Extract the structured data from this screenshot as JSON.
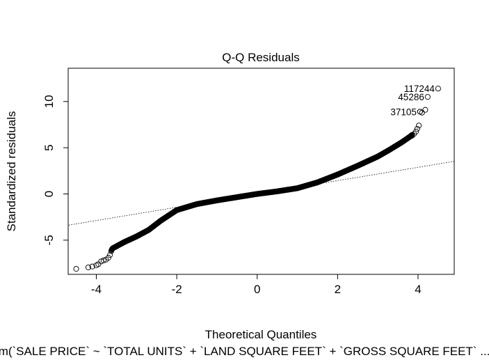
{
  "chart_data": {
    "type": "scatter",
    "title": "Q-Q Residuals",
    "xlabel": "Theoretical Quantiles",
    "ylabel": "Standardized residuals",
    "subtitle": "lm(`SALE PRICE` ~ `TOTAL UNITS` + `LAND SQUARE FEET` + `GROSS SQUARE FEET` ...)",
    "xlim": [
      -4.7,
      4.9
    ],
    "ylim": [
      -8.7,
      13.6
    ],
    "x_ticks": [
      -4,
      -2,
      0,
      2,
      4
    ],
    "y_ticks": [
      -5,
      0,
      5,
      10
    ],
    "grid": false,
    "legend": "none",
    "point_style": "open-circle",
    "reference_line": {
      "style": "dotted",
      "slope": 0.72,
      "intercept": 0.0
    },
    "labeled_points": [
      {
        "label": "117244",
        "x": 4.5,
        "y": 11.4
      },
      {
        "label": "45286",
        "x": 4.24,
        "y": 10.5
      },
      {
        "label": "37105",
        "x": 4.05,
        "y": 8.9
      }
    ],
    "curve_knots": [
      [
        -4.5,
        -8.1
      ],
      [
        -4.2,
        -7.95
      ],
      [
        -4.0,
        -7.6
      ],
      [
        -3.9,
        -7.35
      ],
      [
        -3.75,
        -7.1
      ],
      [
        -3.6,
        -5.9
      ],
      [
        -3.3,
        -5.2
      ],
      [
        -3.0,
        -4.6
      ],
      [
        -2.7,
        -3.9
      ],
      [
        -2.4,
        -2.9
      ],
      [
        -2.0,
        -1.75
      ],
      [
        -1.5,
        -1.1
      ],
      [
        -1.0,
        -0.7
      ],
      [
        -0.5,
        -0.35
      ],
      [
        0.0,
        0.0
      ],
      [
        0.5,
        0.28
      ],
      [
        1.0,
        0.62
      ],
      [
        1.5,
        1.25
      ],
      [
        2.0,
        2.1
      ],
      [
        2.5,
        3.05
      ],
      [
        3.0,
        4.05
      ],
      [
        3.3,
        4.8
      ],
      [
        3.6,
        5.6
      ],
      [
        3.8,
        6.2
      ],
      [
        3.95,
        6.75
      ],
      [
        4.0,
        7.25
      ]
    ],
    "outlier_points": [
      [
        -4.5,
        -8.1
      ],
      [
        -4.2,
        -7.95
      ],
      [
        -4.1,
        -7.85
      ],
      [
        -4.0,
        -7.72
      ],
      [
        -3.95,
        -7.6
      ],
      [
        -3.88,
        -7.3
      ],
      [
        -3.82,
        -7.2
      ],
      [
        -3.76,
        -7.1
      ],
      [
        -3.7,
        -6.9
      ],
      [
        -3.66,
        -6.6
      ],
      [
        -3.63,
        -6.2
      ],
      [
        3.85,
        6.3
      ],
      [
        3.9,
        6.5
      ],
      [
        3.95,
        6.75
      ],
      [
        3.98,
        7.05
      ],
      [
        4.02,
        7.4
      ],
      [
        4.1,
        8.8
      ],
      [
        4.05,
        8.9
      ],
      [
        4.18,
        9.1
      ]
    ]
  }
}
